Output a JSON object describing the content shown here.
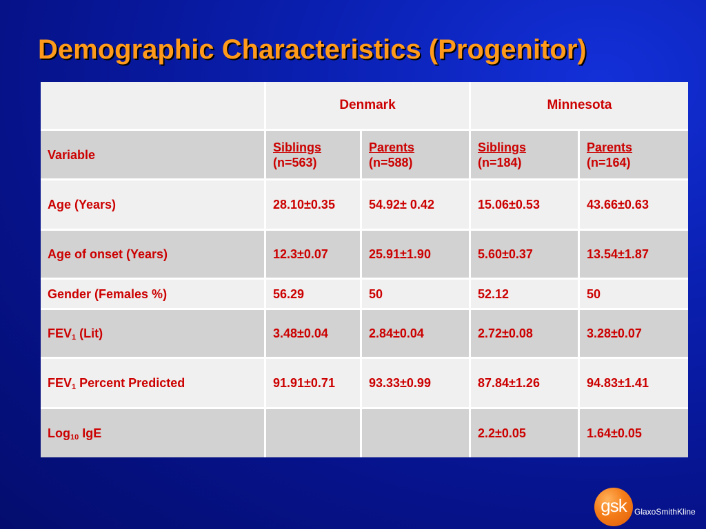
{
  "title": "Demographic Characteristics (Progenitor)",
  "colors": {
    "background": "#061289",
    "title": "#ff9a1a",
    "table_text": "#cc0000",
    "row_light": "#f0f0f0",
    "row_dark": "#d2d2d2",
    "logo": "#f47c18"
  },
  "table": {
    "groups": [
      "Denmark",
      "Minnesota"
    ],
    "variable_header": "Variable",
    "columns": [
      {
        "label": "Siblings",
        "n": "(n=563)"
      },
      {
        "label": "Parents",
        "n": "(n=588)"
      },
      {
        "label": "Siblings",
        "n": "(n=184)"
      },
      {
        "label": "Parents",
        "n": "(n=164)"
      }
    ],
    "rows": [
      {
        "label": "Age (Years)",
        "values": [
          "28.10±0.35",
          "54.92± 0.42",
          "15.06±0.53",
          "43.66±0.63"
        ]
      },
      {
        "label": "Age of onset (Years)",
        "values": [
          "12.3±0.07",
          "25.91±1.90",
          "5.60±0.37",
          "13.54±1.87"
        ]
      },
      {
        "label": "Gender (Females %)",
        "values": [
          "56.29",
          "50",
          "52.12",
          "50"
        ]
      },
      {
        "label_main": "FEV",
        "label_sub": "1",
        "label_rest": " (Lit)",
        "values": [
          "3.48±0.04",
          "2.84±0.04",
          "2.72±0.08",
          "3.28±0.07"
        ]
      },
      {
        "label_main": "FEV",
        "label_sub": "1",
        "label_rest": " Percent Predicted",
        "values": [
          "91.91±0.71",
          "93.33±0.99",
          "87.84±1.26",
          "94.83±1.41"
        ]
      },
      {
        "label_main": "Log",
        "label_sub": "10",
        "label_rest": " IgE",
        "values": [
          "",
          "",
          "2.2±0.05",
          "1.64±0.05"
        ]
      }
    ]
  },
  "logo": {
    "mark": "gsk",
    "name": "GlaxoSmithKline"
  }
}
